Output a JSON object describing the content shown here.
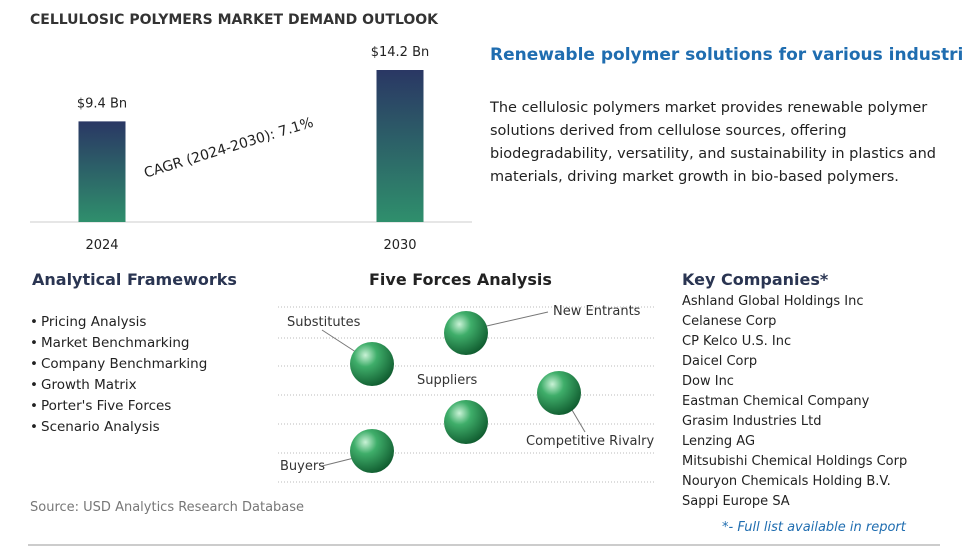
{
  "chart_data": {
    "type": "bar",
    "title": "CELLULOSIC POLYMERS MARKET DEMAND OUTLOOK",
    "categories": [
      "2024",
      "2030"
    ],
    "values": [
      9.4,
      14.2
    ],
    "value_labels": [
      "$9.4 Bn",
      "$14.2 Bn"
    ],
    "annotation": "CAGR (2024-2030):  7.1%"
  },
  "summary": {
    "heading": "Renewable polymer solutions for various industries.",
    "lines": [
      "The cellulosic polymers market provides renewable polymer",
      "solutions derived from cellulose sources, offering",
      "biodegradability, versatility, and sustainability in plastics and",
      "materials, driving market growth in bio-based polymers."
    ]
  },
  "frameworks": {
    "title": "Analytical Frameworks",
    "items": [
      "Pricing Analysis",
      "Market Benchmarking",
      "Company Benchmarking",
      "Growth Matrix",
      "Porter's Five Forces",
      "Scenario Analysis"
    ]
  },
  "five_forces": {
    "title": "Five Forces Analysis",
    "labels": [
      "Substitutes",
      "New Entrants",
      "Suppliers",
      "Competitive Rivalry",
      "Buyers"
    ]
  },
  "companies": {
    "title": "Key Companies*",
    "items": [
      "Ashland Global Holdings Inc",
      "Celanese Corp",
      "CP Kelco U.S. Inc",
      "Daicel Corp",
      "Dow Inc",
      "Eastman Chemical Company",
      "Grasim Industries Ltd",
      "Lenzing AG",
      "Mitsubishi Chemical Holdings Corp",
      "Nouryon Chemicals Holding B.V.",
      "Sappi Europe SA"
    ],
    "footnote": "*- Full list available in report"
  },
  "source": "Source: USD Analytics Research Database"
}
